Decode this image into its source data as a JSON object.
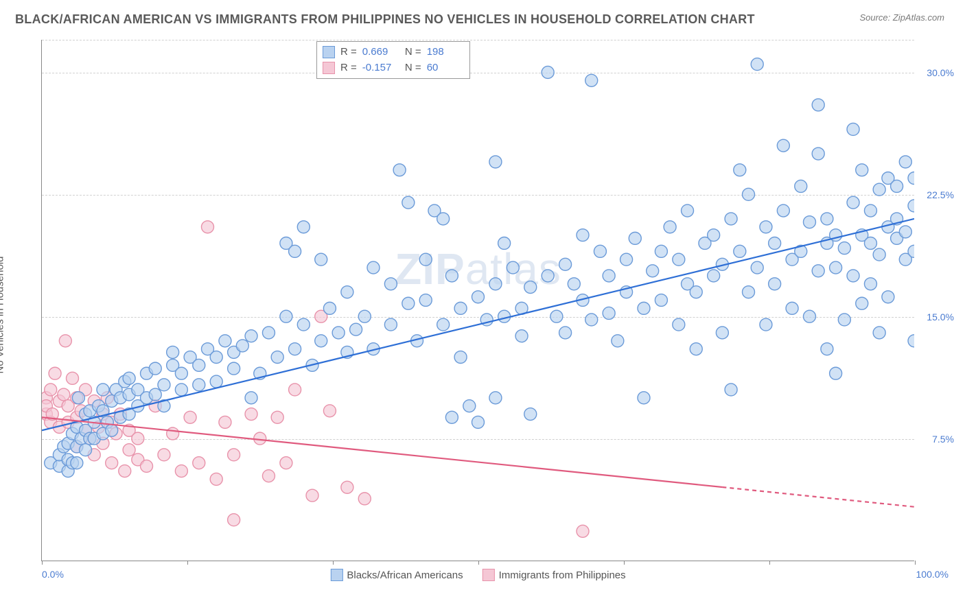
{
  "header": {
    "title": "BLACK/AFRICAN AMERICAN VS IMMIGRANTS FROM PHILIPPINES NO VEHICLES IN HOUSEHOLD CORRELATION CHART",
    "source": "Source: ZipAtlas.com"
  },
  "chart": {
    "type": "scatter",
    "ylabel": "No Vehicles in Household",
    "xlim": [
      0,
      100
    ],
    "ylim": [
      0,
      32
    ],
    "xticks": [
      0,
      16.67,
      33.33,
      50,
      66.67,
      83.33,
      100
    ],
    "xaxis_label_left": "0.0%",
    "xaxis_label_right": "100.0%",
    "yticks": [
      {
        "v": 7.5,
        "label": "7.5%"
      },
      {
        "v": 15.0,
        "label": "15.0%"
      },
      {
        "v": 22.5,
        "label": "22.5%"
      },
      {
        "v": 30.0,
        "label": "30.0%"
      }
    ],
    "grid_color": "#d0d0d0",
    "background_color": "#ffffff",
    "axis_color": "#888888",
    "tick_label_color": "#4a7bd0",
    "watermark": "ZIPatlas",
    "marker_radius": 9,
    "marker_stroke_width": 1.4,
    "line_width": 2.2,
    "series": [
      {
        "id": "black_african_american",
        "label": "Blacks/African Americans",
        "fill_color": "#b9d2f0",
        "stroke_color": "#6a9ad8",
        "line_color": "#2e6fd6",
        "R": "0.669",
        "N": "198",
        "trend": {
          "x1": 0,
          "y1": 8.0,
          "x2": 100,
          "y2": 21.0,
          "dash_from_x": null
        },
        "points": [
          [
            1,
            6.0
          ],
          [
            2,
            5.8
          ],
          [
            2,
            6.5
          ],
          [
            2.5,
            7.0
          ],
          [
            3,
            5.5
          ],
          [
            3,
            6.2
          ],
          [
            3,
            7.2
          ],
          [
            3.5,
            6.0
          ],
          [
            3.5,
            7.8
          ],
          [
            4,
            6.0
          ],
          [
            4,
            7.0
          ],
          [
            4,
            8.2
          ],
          [
            4.2,
            10.0
          ],
          [
            4.5,
            7.5
          ],
          [
            5,
            6.8
          ],
          [
            5,
            8.0
          ],
          [
            5,
            9.0
          ],
          [
            5.5,
            7.5
          ],
          [
            5.5,
            9.2
          ],
          [
            6,
            7.5
          ],
          [
            6,
            8.5
          ],
          [
            6.5,
            9.5
          ],
          [
            7,
            7.8
          ],
          [
            7,
            9.2
          ],
          [
            7,
            10.5
          ],
          [
            7.5,
            8.5
          ],
          [
            8,
            8.0
          ],
          [
            8,
            9.8
          ],
          [
            8.5,
            10.5
          ],
          [
            9,
            8.8
          ],
          [
            9,
            10.0
          ],
          [
            9.5,
            11.0
          ],
          [
            10,
            9.0
          ],
          [
            10,
            10.2
          ],
          [
            10,
            11.2
          ],
          [
            11,
            9.5
          ],
          [
            11,
            10.5
          ],
          [
            12,
            10.0
          ],
          [
            12,
            11.5
          ],
          [
            13,
            10.2
          ],
          [
            13,
            11.8
          ],
          [
            14,
            9.5
          ],
          [
            14,
            10.8
          ],
          [
            15,
            12.0
          ],
          [
            15,
            12.8
          ],
          [
            16,
            10.5
          ],
          [
            16,
            11.5
          ],
          [
            17,
            12.5
          ],
          [
            18,
            10.8
          ],
          [
            18,
            12.0
          ],
          [
            19,
            13.0
          ],
          [
            20,
            11.0
          ],
          [
            20,
            12.5
          ],
          [
            21,
            13.5
          ],
          [
            22,
            11.8
          ],
          [
            22,
            12.8
          ],
          [
            23,
            13.2
          ],
          [
            24,
            10.0
          ],
          [
            24,
            13.8
          ],
          [
            25,
            11.5
          ],
          [
            26,
            14.0
          ],
          [
            27,
            12.5
          ],
          [
            28,
            15.0
          ],
          [
            28,
            19.5
          ],
          [
            29,
            13.0
          ],
          [
            29,
            19.0
          ],
          [
            30,
            20.5
          ],
          [
            30,
            14.5
          ],
          [
            31,
            12.0
          ],
          [
            32,
            13.5
          ],
          [
            32,
            18.5
          ],
          [
            33,
            15.5
          ],
          [
            34,
            14.0
          ],
          [
            35,
            12.8
          ],
          [
            35,
            16.5
          ],
          [
            36,
            14.2
          ],
          [
            37,
            15.0
          ],
          [
            38,
            18.0
          ],
          [
            38,
            13.0
          ],
          [
            40,
            14.5
          ],
          [
            40,
            17.0
          ],
          [
            41,
            24.0
          ],
          [
            42,
            15.8
          ],
          [
            42,
            22.0
          ],
          [
            43,
            13.5
          ],
          [
            44,
            16.0
          ],
          [
            44,
            18.5
          ],
          [
            45,
            21.5
          ],
          [
            46,
            14.5
          ],
          [
            46,
            21.0
          ],
          [
            47,
            17.5
          ],
          [
            47,
            8.8
          ],
          [
            48,
            15.5
          ],
          [
            48,
            12.5
          ],
          [
            49,
            9.5
          ],
          [
            50,
            16.2
          ],
          [
            50,
            8.5
          ],
          [
            51,
            14.8
          ],
          [
            52,
            17.0
          ],
          [
            52,
            10.0
          ],
          [
            52,
            24.5
          ],
          [
            53,
            15.0
          ],
          [
            53,
            19.5
          ],
          [
            54,
            18.0
          ],
          [
            55,
            13.8
          ],
          [
            55,
            15.5
          ],
          [
            56,
            16.8
          ],
          [
            56,
            9.0
          ],
          [
            58,
            17.5
          ],
          [
            58,
            30.0
          ],
          [
            59,
            15.0
          ],
          [
            60,
            14.0
          ],
          [
            60,
            18.2
          ],
          [
            61,
            17.0
          ],
          [
            62,
            16.0
          ],
          [
            62,
            20.0
          ],
          [
            63,
            14.8
          ],
          [
            63,
            29.5
          ],
          [
            64,
            19.0
          ],
          [
            65,
            17.5
          ],
          [
            65,
            15.2
          ],
          [
            66,
            13.5
          ],
          [
            67,
            18.5
          ],
          [
            67,
            16.5
          ],
          [
            68,
            19.8
          ],
          [
            69,
            15.5
          ],
          [
            69,
            10.0
          ],
          [
            70,
            17.8
          ],
          [
            71,
            19.0
          ],
          [
            71,
            16.0
          ],
          [
            72,
            20.5
          ],
          [
            73,
            14.5
          ],
          [
            73,
            18.5
          ],
          [
            74,
            17.0
          ],
          [
            74,
            21.5
          ],
          [
            75,
            16.5
          ],
          [
            75,
            13.0
          ],
          [
            76,
            19.5
          ],
          [
            77,
            20.0
          ],
          [
            77,
            17.5
          ],
          [
            78,
            14.0
          ],
          [
            78,
            18.2
          ],
          [
            79,
            21.0
          ],
          [
            79,
            10.5
          ],
          [
            80,
            19.0
          ],
          [
            80,
            24.0
          ],
          [
            81,
            16.5
          ],
          [
            81,
            22.5
          ],
          [
            82,
            18.0
          ],
          [
            82,
            30.5
          ],
          [
            83,
            20.5
          ],
          [
            83,
            14.5
          ],
          [
            84,
            19.5
          ],
          [
            84,
            17.0
          ],
          [
            85,
            21.5
          ],
          [
            85,
            25.5
          ],
          [
            86,
            18.5
          ],
          [
            86,
            15.5
          ],
          [
            87,
            23.0
          ],
          [
            87,
            19.0
          ],
          [
            88,
            15.0
          ],
          [
            88,
            20.8
          ],
          [
            89,
            25.0
          ],
          [
            89,
            17.8
          ],
          [
            89,
            28.0
          ],
          [
            90,
            19.5
          ],
          [
            90,
            21.0
          ],
          [
            90,
            13.0
          ],
          [
            91,
            18.0
          ],
          [
            91,
            20.0
          ],
          [
            91,
            11.5
          ],
          [
            92,
            19.2
          ],
          [
            92,
            14.8
          ],
          [
            93,
            22.0
          ],
          [
            93,
            26.5
          ],
          [
            93,
            17.5
          ],
          [
            94,
            20.0
          ],
          [
            94,
            24.0
          ],
          [
            94,
            15.8
          ],
          [
            95,
            21.5
          ],
          [
            95,
            19.5
          ],
          [
            95,
            17.0
          ],
          [
            96,
            22.8
          ],
          [
            96,
            18.8
          ],
          [
            96,
            14.0
          ],
          [
            97,
            23.5
          ],
          [
            97,
            20.5
          ],
          [
            97,
            16.2
          ],
          [
            98,
            19.8
          ],
          [
            98,
            23.0
          ],
          [
            98,
            21.0
          ],
          [
            99,
            18.5
          ],
          [
            99,
            24.5
          ],
          [
            99,
            20.2
          ],
          [
            100,
            23.5
          ],
          [
            100,
            19.0
          ],
          [
            100,
            21.8
          ],
          [
            100,
            13.5
          ]
        ]
      },
      {
        "id": "immigrants_philippines",
        "label": "Immigrants from Philippines",
        "fill_color": "#f5c7d5",
        "stroke_color": "#e892aa",
        "line_color": "#e05a7e",
        "R": "-0.157",
        "N": "60",
        "trend": {
          "x1": 0,
          "y1": 8.8,
          "x2": 100,
          "y2": 3.3,
          "dash_from_x": 78
        },
        "points": [
          [
            0.5,
            9.0
          ],
          [
            0.5,
            10.0
          ],
          [
            0.5,
            9.5
          ],
          [
            1,
            8.5
          ],
          [
            1,
            10.5
          ],
          [
            1.2,
            9.0
          ],
          [
            1.5,
            11.5
          ],
          [
            2,
            9.8
          ],
          [
            2,
            8.2
          ],
          [
            2.5,
            10.2
          ],
          [
            2.7,
            13.5
          ],
          [
            3,
            9.5
          ],
          [
            3,
            8.5
          ],
          [
            3.5,
            11.2
          ],
          [
            4,
            10.0
          ],
          [
            4,
            8.8
          ],
          [
            4,
            7.0
          ],
          [
            4.5,
            9.2
          ],
          [
            5,
            10.5
          ],
          [
            5,
            8.0
          ],
          [
            5.5,
            7.5
          ],
          [
            6,
            9.8
          ],
          [
            6,
            6.5
          ],
          [
            6.5,
            8.2
          ],
          [
            7,
            9.0
          ],
          [
            7,
            7.2
          ],
          [
            7.5,
            10.0
          ],
          [
            8,
            8.5
          ],
          [
            8,
            6.0
          ],
          [
            8.5,
            7.8
          ],
          [
            9,
            9.0
          ],
          [
            9.5,
            5.5
          ],
          [
            10,
            8.0
          ],
          [
            10,
            6.8
          ],
          [
            11,
            6.2
          ],
          [
            11,
            7.5
          ],
          [
            12,
            5.8
          ],
          [
            13,
            9.5
          ],
          [
            14,
            6.5
          ],
          [
            15,
            7.8
          ],
          [
            16,
            5.5
          ],
          [
            17,
            8.8
          ],
          [
            18,
            6.0
          ],
          [
            19,
            20.5
          ],
          [
            20,
            5.0
          ],
          [
            21,
            8.5
          ],
          [
            22,
            6.5
          ],
          [
            22,
            2.5
          ],
          [
            24,
            9.0
          ],
          [
            25,
            7.5
          ],
          [
            26,
            5.2
          ],
          [
            27,
            8.8
          ],
          [
            28,
            6.0
          ],
          [
            29,
            10.5
          ],
          [
            31,
            4.0
          ],
          [
            33,
            9.2
          ],
          [
            32,
            15.0
          ],
          [
            35,
            4.5
          ],
          [
            37,
            3.8
          ],
          [
            62,
            1.8
          ]
        ]
      }
    ]
  }
}
